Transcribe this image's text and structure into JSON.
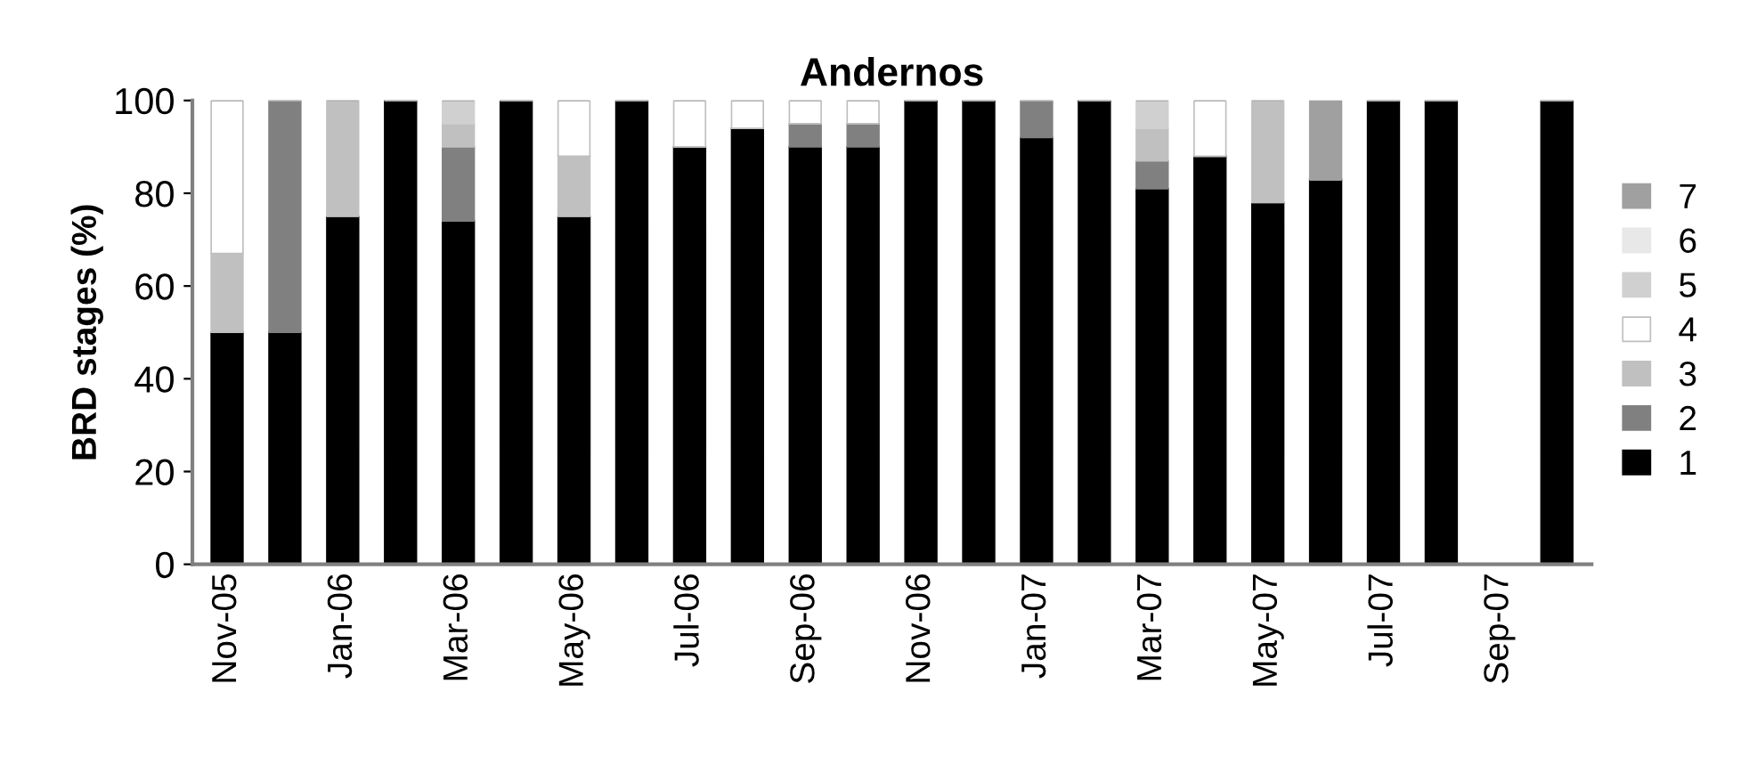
{
  "chart_data": {
    "type": "bar",
    "title": "Andernos",
    "ylabel": "BRD stages (%)",
    "stacked": true,
    "categories": [
      "Nov-05",
      null,
      "Jan-06",
      null,
      "Mar-06",
      null,
      "May-06",
      null,
      "Jul-06",
      null,
      "Sep-06",
      null,
      "Nov-06",
      null,
      "Jan-07",
      null,
      "Mar-07",
      null,
      "May-07",
      null,
      "Jul-07",
      null,
      "Sep-07",
      null
    ],
    "series": [
      {
        "name": "1",
        "color": "#000000",
        "values": [
          50,
          50,
          75,
          100,
          74,
          100,
          75,
          100,
          90,
          94,
          90,
          90,
          100,
          100,
          92,
          100,
          81,
          88,
          78,
          83,
          100,
          100,
          0,
          100
        ]
      },
      {
        "name": "2",
        "color": "#808080",
        "values": [
          0,
          50,
          0,
          0,
          16,
          0,
          0,
          0,
          0,
          0,
          5,
          5,
          0,
          0,
          8,
          0,
          6,
          0,
          0,
          0,
          0,
          0,
          0,
          0
        ]
      },
      {
        "name": "3",
        "color": "#c0c0c0",
        "values": [
          17,
          0,
          25,
          0,
          5,
          0,
          13,
          0,
          0,
          0,
          0,
          0,
          0,
          0,
          0,
          0,
          7,
          0,
          22,
          0,
          0,
          0,
          0,
          0
        ]
      },
      {
        "name": "4",
        "color": "#ffffff",
        "values": [
          33,
          0,
          0,
          0,
          0,
          0,
          12,
          0,
          10,
          6,
          5,
          5,
          0,
          0,
          0,
          0,
          0,
          12,
          0,
          0,
          0,
          0,
          0,
          0
        ]
      },
      {
        "name": "5",
        "color": "#d0d0d0",
        "values": [
          0,
          0,
          0,
          0,
          5,
          0,
          0,
          0,
          0,
          0,
          0,
          0,
          0,
          0,
          0,
          0,
          6,
          0,
          0,
          0,
          0,
          0,
          0,
          0
        ]
      },
      {
        "name": "6",
        "color": "#e8e8e8",
        "values": [
          0,
          0,
          0,
          0,
          0,
          0,
          0,
          0,
          0,
          0,
          0,
          0,
          0,
          0,
          0,
          0,
          0,
          0,
          0,
          0,
          0,
          0,
          0,
          0
        ]
      },
      {
        "name": "7",
        "color": "#a0a0a0",
        "values": [
          0,
          0,
          0,
          0,
          0,
          0,
          0,
          0,
          0,
          0,
          0,
          0,
          0,
          0,
          0,
          0,
          0,
          0,
          0,
          17,
          0,
          0,
          0,
          0
        ]
      }
    ],
    "ylim": [
      0,
      100
    ],
    "yticks": [
      0,
      20,
      40,
      60,
      80,
      100
    ],
    "grid": false,
    "legend": "right"
  }
}
